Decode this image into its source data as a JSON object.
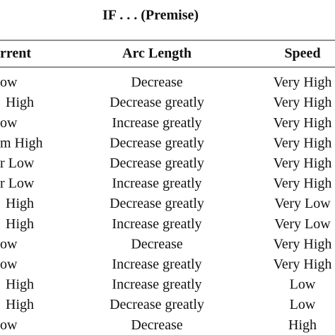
{
  "header": {
    "title": "IF . . . (Premise)"
  },
  "table": {
    "columns": [
      "rrent",
      "Arc Length",
      "Speed"
    ],
    "rows": [
      [
        "ow",
        "Decrease",
        "Very High"
      ],
      [
        "High",
        "Decrease greatly",
        "Very High"
      ],
      [
        "ow",
        "Increase greatly",
        "Very High"
      ],
      [
        "m High",
        "Decrease greatly",
        "Very High"
      ],
      [
        "r Low",
        "Decrease greatly",
        "Very High"
      ],
      [
        "r Low",
        "Increase greatly",
        "Very High"
      ],
      [
        "High",
        "Decrease greatly",
        "Very Low"
      ],
      [
        "High",
        "Increase greatly",
        "Very Low"
      ],
      [
        "ow",
        "Decrease",
        "Very High"
      ],
      [
        "ow",
        "Increase greatly",
        "Very High"
      ],
      [
        "High",
        "Increase greatly",
        "Low"
      ],
      [
        "High",
        "Decrease greatly",
        "Low"
      ],
      [
        "ow",
        "Decrease",
        "High"
      ]
    ]
  }
}
